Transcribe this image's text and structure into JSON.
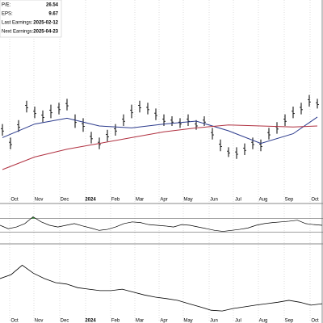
{
  "info": {
    "rows": [
      {
        "label": "P/E:",
        "value": "26.54"
      },
      {
        "label": "EPS:",
        "value": "9.67"
      },
      {
        "label": "Last Earnings:",
        "value": "2025-02-12"
      },
      {
        "label": "Next Earnings:",
        "value": "2025-04-23"
      }
    ]
  },
  "chart_data": {
    "type": "ohlc",
    "x_labels": [
      "Oct",
      "Nov",
      "Dec",
      "2024",
      "Feb",
      "Mar",
      "Apr",
      "May",
      "Jun",
      "Jul",
      "Aug",
      "Sep",
      "Oct"
    ],
    "ylim": [
      0,
      100
    ],
    "price": {
      "color": "#000000",
      "high": [
        36,
        29,
        38,
        48,
        45,
        43,
        46,
        47,
        49,
        41,
        39,
        32,
        29,
        33,
        36,
        41,
        46,
        48,
        47,
        44,
        41,
        40,
        39,
        41,
        38,
        40,
        34,
        28,
        24,
        24,
        26,
        29,
        28,
        34,
        37,
        41,
        45,
        47,
        51,
        49
      ],
      "low": [
        30,
        23,
        32,
        42,
        39,
        37,
        39,
        41,
        43,
        34,
        32,
        26,
        23,
        27,
        30,
        35,
        39,
        42,
        41,
        38,
        35,
        35,
        34,
        35,
        33,
        35,
        28,
        22,
        19,
        18,
        20,
        23,
        22,
        28,
        31,
        35,
        39,
        41,
        45,
        44
      ]
    },
    "ma_fast": {
      "color": "#2b3a8c",
      "x": [
        0,
        4,
        8,
        12,
        16,
        20,
        24,
        28,
        32,
        36,
        39
      ],
      "values": [
        29,
        36,
        39,
        35,
        34,
        36,
        37.5,
        32.5,
        26,
        31,
        39.6
      ]
    },
    "ma_slow": {
      "color": "#b03040",
      "x": [
        0,
        4,
        8,
        12,
        16,
        20,
        24,
        28,
        32,
        36,
        39
      ],
      "values": [
        12.5,
        19,
        23,
        26,
        29,
        32,
        34,
        35.5,
        35,
        34.5,
        35
      ]
    },
    "oscillator": {
      "color": "#000000",
      "fill": "#3a9a3a",
      "ylim": [
        0,
        100
      ],
      "levels": [
        70,
        30
      ],
      "values": [
        50,
        40,
        45,
        55,
        75,
        60,
        50,
        45,
        50,
        55,
        48,
        42,
        35,
        38,
        45,
        55,
        60,
        58,
        52,
        50,
        48,
        45,
        52,
        50,
        45,
        40,
        35,
        32,
        35,
        38,
        42,
        50,
        55,
        58,
        60,
        62,
        65,
        55,
        52,
        50
      ]
    },
    "relative": {
      "color": "#000000",
      "ylim": [
        0,
        100
      ],
      "values": [
        55.6,
        61,
        74,
        63,
        55.6,
        50,
        48,
        43,
        41,
        39,
        39,
        41,
        37,
        33,
        30,
        28,
        25.6,
        21,
        16.7,
        12,
        11,
        14.4,
        16.7,
        19,
        21,
        23,
        25.6,
        23,
        19,
        21
      ]
    }
  }
}
